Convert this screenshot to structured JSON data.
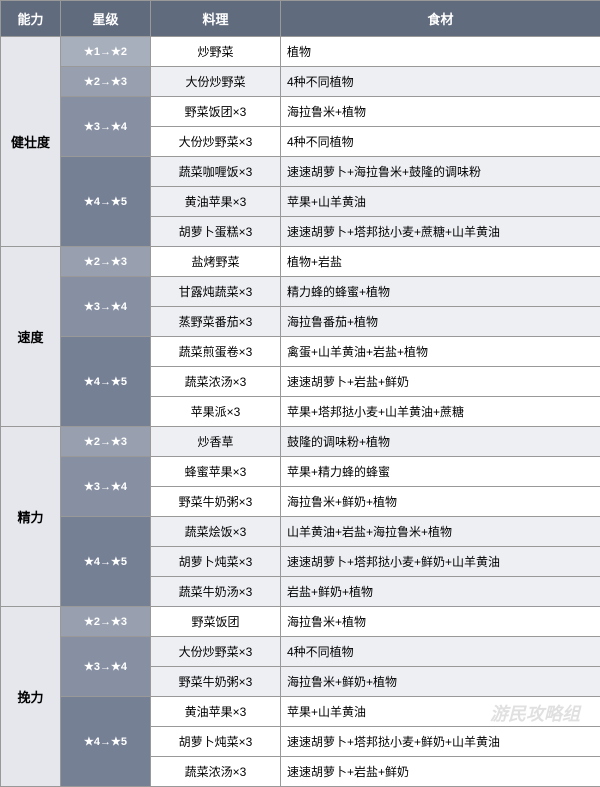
{
  "headers": {
    "ability": "能力",
    "star": "星级",
    "dish": "料理",
    "ingredient": "食材"
  },
  "sections": [
    {
      "ability": "健壮度",
      "levels": [
        {
          "star": "★1→★2",
          "shade": "star-1",
          "items": [
            {
              "dish": "炒野菜",
              "ingredient": "植物",
              "alt": false
            }
          ]
        },
        {
          "star": "★2→★3",
          "shade": "star-2",
          "items": [
            {
              "dish": "大份炒野菜",
              "ingredient": "4种不同植物",
              "alt": true
            }
          ]
        },
        {
          "star": "★3→★4",
          "shade": "star-3",
          "items": [
            {
              "dish": "野菜饭团×3",
              "ingredient": "海拉鲁米+植物",
              "alt": false
            },
            {
              "dish": "大份炒野菜×3",
              "ingredient": "4种不同植物",
              "alt": false
            }
          ]
        },
        {
          "star": "★4→★5",
          "shade": "star-4",
          "items": [
            {
              "dish": "蔬菜咖喱饭×3",
              "ingredient": "速速胡萝卜+海拉鲁米+鼓隆的调味粉",
              "alt": true
            },
            {
              "dish": "黄油苹果×3",
              "ingredient": "苹果+山羊黄油",
              "alt": true
            },
            {
              "dish": "胡萝卜蛋糕×3",
              "ingredient": "速速胡萝卜+塔邦挞小麦+蔗糖+山羊黄油",
              "alt": true
            }
          ]
        }
      ]
    },
    {
      "ability": "速度",
      "levels": [
        {
          "star": "★2→★3",
          "shade": "star-2",
          "items": [
            {
              "dish": "盐烤野菜",
              "ingredient": "植物+岩盐",
              "alt": false
            }
          ]
        },
        {
          "star": "★3→★4",
          "shade": "star-3",
          "items": [
            {
              "dish": "甘露炖蔬菜×3",
              "ingredient": "精力蜂的蜂蜜+植物",
              "alt": true
            },
            {
              "dish": "蒸野菜番茄×3",
              "ingredient": "海拉鲁番茄+植物",
              "alt": true
            }
          ]
        },
        {
          "star": "★4→★5",
          "shade": "star-4",
          "items": [
            {
              "dish": "蔬菜煎蛋卷×3",
              "ingredient": "禽蛋+山羊黄油+岩盐+植物",
              "alt": false
            },
            {
              "dish": "蔬菜浓汤×3",
              "ingredient": "速速胡萝卜+岩盐+鲜奶",
              "alt": false
            },
            {
              "dish": "苹果派×3",
              "ingredient": "苹果+塔邦挞小麦+山羊黄油+蔗糖",
              "alt": false
            }
          ]
        }
      ]
    },
    {
      "ability": "精力",
      "levels": [
        {
          "star": "★2→★3",
          "shade": "star-2",
          "items": [
            {
              "dish": "炒香草",
              "ingredient": "鼓隆的调味粉+植物",
              "alt": true
            }
          ]
        },
        {
          "star": "★3→★4",
          "shade": "star-3",
          "items": [
            {
              "dish": "蜂蜜苹果×3",
              "ingredient": "苹果+精力蜂的蜂蜜",
              "alt": false
            },
            {
              "dish": "野菜牛奶粥×3",
              "ingredient": "海拉鲁米+鲜奶+植物",
              "alt": false
            }
          ]
        },
        {
          "star": "★4→★5",
          "shade": "star-4",
          "items": [
            {
              "dish": "蔬菜烩饭×3",
              "ingredient": "山羊黄油+岩盐+海拉鲁米+植物",
              "alt": true
            },
            {
              "dish": "胡萝卜炖菜×3",
              "ingredient": "速速胡萝卜+塔邦挞小麦+鲜奶+山羊黄油",
              "alt": true
            },
            {
              "dish": "蔬菜牛奶汤×3",
              "ingredient": "岩盐+鲜奶+植物",
              "alt": true
            }
          ]
        }
      ]
    },
    {
      "ability": "挽力",
      "levels": [
        {
          "star": "★2→★3",
          "shade": "star-2",
          "items": [
            {
              "dish": "野菜饭团",
              "ingredient": "海拉鲁米+植物",
              "alt": false
            }
          ]
        },
        {
          "star": "★3→★4",
          "shade": "star-3",
          "items": [
            {
              "dish": "大份炒野菜×3",
              "ingredient": "4种不同植物",
              "alt": true
            },
            {
              "dish": "野菜牛奶粥×3",
              "ingredient": "海拉鲁米+鲜奶+植物",
              "alt": true
            }
          ]
        },
        {
          "star": "★4→★5",
          "shade": "star-4",
          "items": [
            {
              "dish": "黄油苹果×3",
              "ingredient": "苹果+山羊黄油",
              "alt": false
            },
            {
              "dish": "胡萝卜炖菜×3",
              "ingredient": "速速胡萝卜+塔邦挞小麦+鲜奶+山羊黄油",
              "alt": false
            },
            {
              "dish": "蔬菜浓汤×3",
              "ingredient": "速速胡萝卜+岩盐+鲜奶",
              "alt": false
            }
          ]
        }
      ]
    }
  ],
  "watermark": "游民攻略组"
}
